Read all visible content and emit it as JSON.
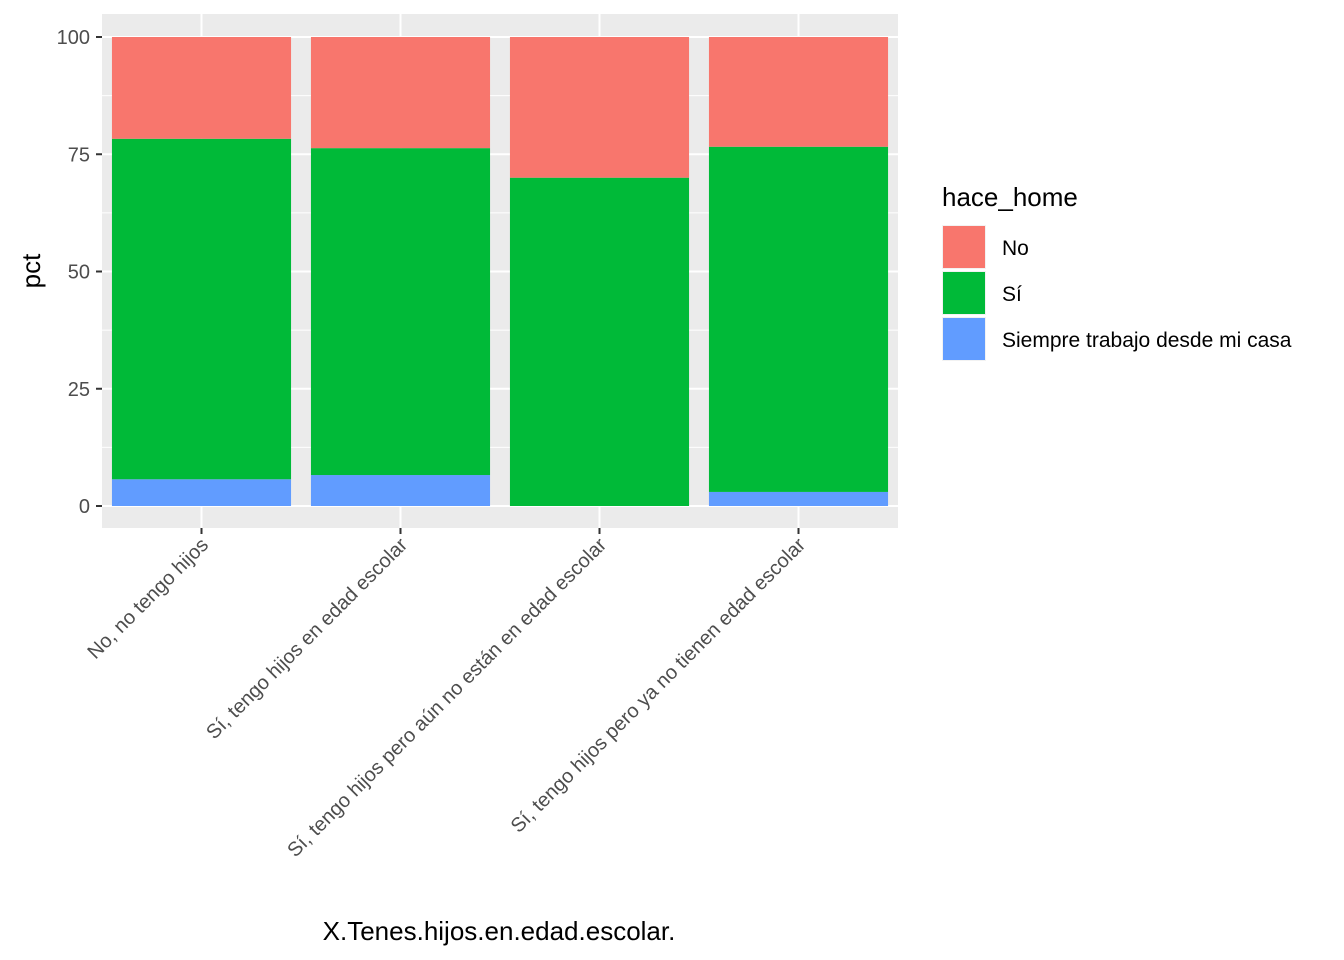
{
  "chart_data": {
    "type": "bar",
    "stacked": true,
    "xlabel": "X.Tenes.hijos.en.edad.escolar.",
    "ylabel": "pct",
    "ylim": [
      0,
      100
    ],
    "yticks": [
      0,
      25,
      50,
      75,
      100
    ],
    "categories": [
      "No, no tengo hijos",
      "Sí, tengo hijos en edad escolar",
      "Sí, tengo hijos pero aún no están en edad escolar",
      "Sí, tengo hijos pero ya no tienen edad escolar"
    ],
    "series": [
      {
        "name": "Siempre trabajo desde mi casa",
        "color": "#619CFF",
        "values": [
          5.7,
          6.6,
          0.0,
          3.0
        ]
      },
      {
        "name": "Sí",
        "color": "#00BA38",
        "values": [
          72.6,
          69.7,
          70.0,
          73.6
        ]
      },
      {
        "name": "No",
        "color": "#F8766D",
        "values": [
          21.7,
          23.7,
          30.0,
          23.4
        ]
      }
    ],
    "legend": {
      "title": "hace_home",
      "position": "right",
      "order": [
        "No",
        "Sí",
        "Siempre trabajo desde mi casa"
      ]
    },
    "grid": true,
    "panel_background": "#EBEBEB"
  }
}
